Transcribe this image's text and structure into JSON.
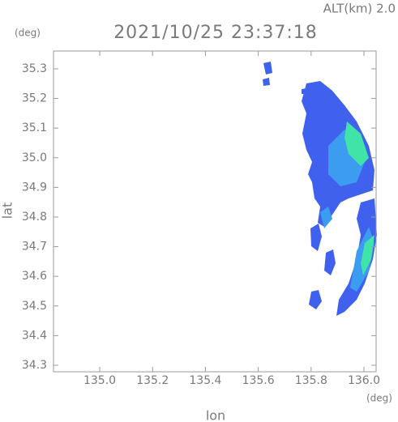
{
  "chart_data": {
    "type": "map",
    "title": "2021/10/25 23:37:18",
    "subtitle": "ALT(km) 2.0",
    "x_label": "lon",
    "y_label": "lat",
    "x_unit": "(deg)",
    "y_unit": "(deg)",
    "xlim": [
      134.825,
      136.046
    ],
    "ylim": [
      34.278,
      35.36
    ],
    "xticks": [
      {
        "value": 135.0,
        "label": "135.0"
      },
      135.2,
      135.4,
      135.6,
      135.8,
      {
        "value": 136.0,
        "label": "136.0"
      }
    ],
    "yticks": [
      34.3,
      34.4,
      34.5,
      34.6,
      34.7,
      34.8,
      34.9,
      {
        "value": 35.0,
        "label": "35.0"
      },
      35.1,
      35.2,
      35.3
    ]
  }
}
